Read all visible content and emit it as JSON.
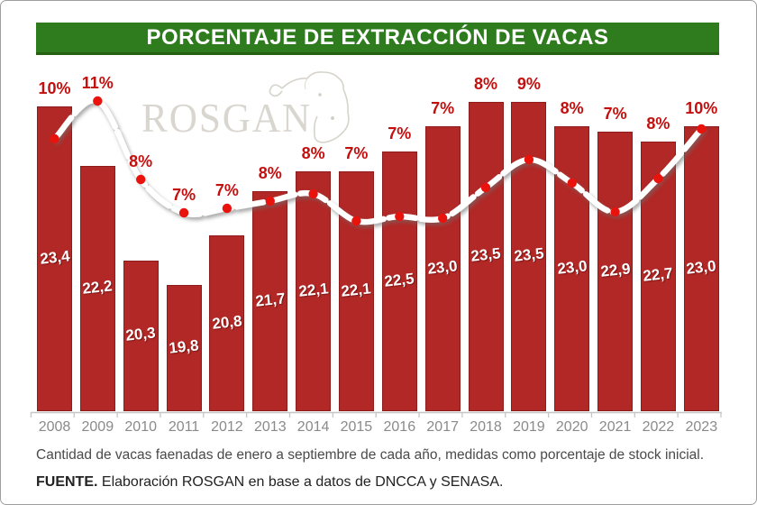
{
  "header": {
    "title": "PORCENTAJE DE EXTRACCIÓN DE VACAS",
    "bg_color": "#2e7c1e",
    "text_color": "#ffffff"
  },
  "watermark": {
    "text": "ROSGAN",
    "icon": "cow-head-icon",
    "color": "#d9d6d0"
  },
  "chart_data": {
    "type": "bar+line",
    "title": "PORCENTAJE DE EXTRACCIÓN DE VACAS",
    "categories": [
      "2008",
      "2009",
      "2010",
      "2011",
      "2012",
      "2013",
      "2014",
      "2015",
      "2016",
      "2017",
      "2018",
      "2019",
      "2020",
      "2021",
      "2022",
      "2023"
    ],
    "series": [
      {
        "name": "bar-values",
        "type": "bar",
        "values": [
          23.4,
          22.2,
          20.3,
          19.8,
          20.8,
          21.7,
          22.1,
          22.1,
          22.5,
          23.0,
          23.5,
          23.5,
          23.0,
          22.9,
          22.7,
          23.0
        ],
        "labels": [
          "23,4",
          "22,2",
          "20,3",
          "19,8",
          "20,8",
          "21,7",
          "22,1",
          "22,1",
          "22,5",
          "23,0",
          "23,5",
          "23,5",
          "23,0",
          "22,9",
          "22,7",
          "23,0"
        ]
      },
      {
        "name": "line-percent",
        "type": "line",
        "values": [
          10,
          11,
          8,
          7,
          7,
          8,
          8,
          7,
          7,
          7,
          8,
          9,
          8,
          7,
          8,
          10
        ],
        "labels": [
          "10%",
          "11%",
          "8%",
          "7%",
          "7%",
          "8%",
          "8%",
          "7%",
          "7%",
          "7%",
          "8%",
          "9%",
          "8%",
          "7%",
          "8%",
          "10%"
        ]
      }
    ],
    "xlabel": "",
    "ylabel": "",
    "gridlines": false,
    "legend": "none",
    "value_axis_visible": false,
    "colors": {
      "bar_fill": "#b12826",
      "bar_border": "#8c1d1c",
      "bar_value_text": "#ffffff",
      "percent_label": "#c3100f",
      "line": "#ffffff",
      "dot": "#e9130d",
      "axis": "#c6c6c6",
      "year_label": "#8a8a8a"
    }
  },
  "caption": "Cantidad de vacas faenadas de enero a septiembre de cada año, medidas como porcentaje de stock inicial.",
  "source": {
    "prefix": "FUENTE.",
    "text": " Elaboración ROSGAN en base a datos de DNCCA y SENASA."
  }
}
